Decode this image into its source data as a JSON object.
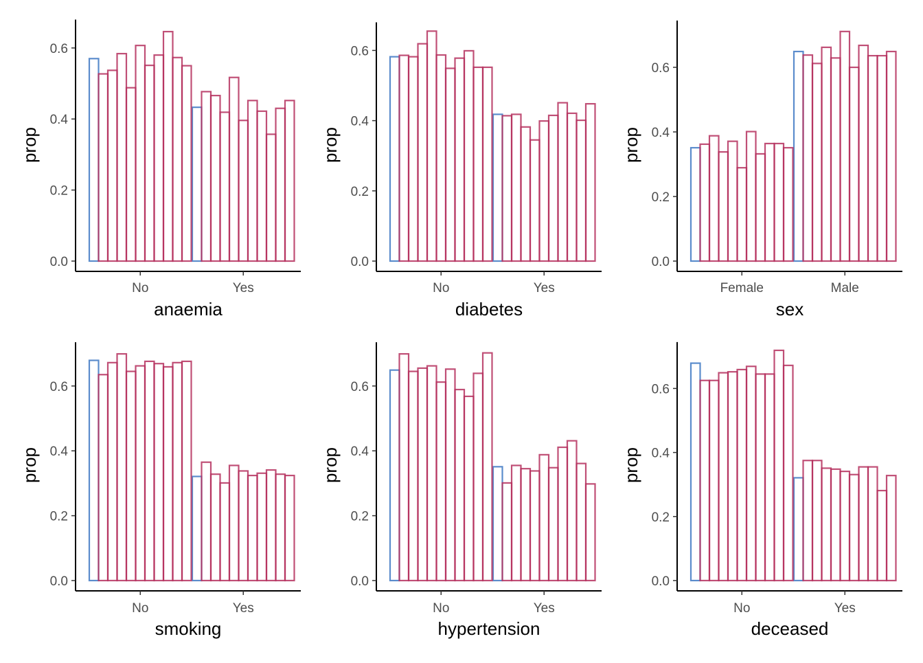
{
  "chart_data": [
    {
      "type": "bar",
      "xlabel": "anaemia",
      "ylabel": "prop",
      "categories": [
        "No",
        "Yes"
      ],
      "yticks": [
        0.0,
        0.2,
        0.4,
        0.6
      ],
      "ytick_labels": [
        "0.0",
        "0.2",
        "0.4",
        "0.6"
      ],
      "ylim": [
        0,
        0.68
      ],
      "series": [
        {
          "values": [
            0.57,
            0.433
          ]
        },
        {
          "values": [
            0.527,
            0.477
          ]
        },
        {
          "values": [
            0.537,
            0.466
          ]
        },
        {
          "values": [
            0.584,
            0.419
          ]
        },
        {
          "values": [
            0.488,
            0.517
          ]
        },
        {
          "values": [
            0.607,
            0.396
          ]
        },
        {
          "values": [
            0.551,
            0.452
          ]
        },
        {
          "values": [
            0.58,
            0.422
          ]
        },
        {
          "values": [
            0.646,
            0.357
          ]
        },
        {
          "values": [
            0.573,
            0.43
          ]
        },
        {
          "values": [
            0.55,
            0.452
          ]
        }
      ]
    },
    {
      "type": "bar",
      "xlabel": "diabetes",
      "ylabel": "prop",
      "categories": [
        "No",
        "Yes"
      ],
      "yticks": [
        0.0,
        0.2,
        0.4,
        0.6
      ],
      "ytick_labels": [
        "0.0",
        "0.2",
        "0.4",
        "0.6"
      ],
      "ylim": [
        0,
        0.68
      ],
      "series": [
        {
          "values": [
            0.582,
            0.418
          ]
        },
        {
          "values": [
            0.586,
            0.414
          ]
        },
        {
          "values": [
            0.582,
            0.418
          ]
        },
        {
          "values": [
            0.619,
            0.382
          ]
        },
        {
          "values": [
            0.655,
            0.345
          ]
        },
        {
          "values": [
            0.587,
            0.399
          ]
        },
        {
          "values": [
            0.549,
            0.415
          ]
        },
        {
          "values": [
            0.578,
            0.451
          ]
        },
        {
          "values": [
            0.599,
            0.421
          ]
        },
        {
          "values": [
            0.552,
            0.401
          ]
        },
        {
          "values": [
            0.552,
            0.448
          ]
        }
      ]
    },
    {
      "type": "bar",
      "xlabel": "sex",
      "ylabel": "prop",
      "categories": [
        "Female",
        "Male"
      ],
      "yticks": [
        0.0,
        0.2,
        0.4,
        0.6
      ],
      "ytick_labels": [
        "0.0",
        "0.2",
        "0.4",
        "0.6"
      ],
      "ylim": [
        0,
        0.745
      ],
      "series": [
        {
          "values": [
            0.351,
            0.649
          ]
        },
        {
          "values": [
            0.362,
            0.638
          ]
        },
        {
          "values": [
            0.388,
            0.612
          ]
        },
        {
          "values": [
            0.338,
            0.662
          ]
        },
        {
          "values": [
            0.371,
            0.629
          ]
        },
        {
          "values": [
            0.289,
            0.711
          ]
        },
        {
          "values": [
            0.401,
            0.6
          ]
        },
        {
          "values": [
            0.332,
            0.668
          ]
        },
        {
          "values": [
            0.364,
            0.636
          ]
        },
        {
          "values": [
            0.364,
            0.636
          ]
        },
        {
          "values": [
            0.351,
            0.649
          ]
        }
      ]
    },
    {
      "type": "bar",
      "xlabel": "smoking",
      "ylabel": "prop",
      "categories": [
        "No",
        "Yes"
      ],
      "yticks": [
        0.0,
        0.2,
        0.4,
        0.6
      ],
      "ytick_labels": [
        "0.0",
        "0.2",
        "0.4",
        "0.6"
      ],
      "ylim": [
        0,
        0.735
      ],
      "series": [
        {
          "values": [
            0.679,
            0.321
          ]
        },
        {
          "values": [
            0.635,
            0.365
          ]
        },
        {
          "values": [
            0.672,
            0.328
          ]
        },
        {
          "values": [
            0.699,
            0.301
          ]
        },
        {
          "values": [
            0.645,
            0.355
          ]
        },
        {
          "values": [
            0.662,
            0.338
          ]
        },
        {
          "values": [
            0.676,
            0.324
          ]
        },
        {
          "values": [
            0.669,
            0.331
          ]
        },
        {
          "values": [
            0.659,
            0.341
          ]
        },
        {
          "values": [
            0.672,
            0.328
          ]
        },
        {
          "values": [
            0.676,
            0.324
          ]
        }
      ]
    },
    {
      "type": "bar",
      "xlabel": "hypertension",
      "ylabel": "prop",
      "categories": [
        "No",
        "Yes"
      ],
      "yticks": [
        0.0,
        0.2,
        0.4,
        0.6
      ],
      "ytick_labels": [
        "0.0",
        "0.2",
        "0.4",
        "0.6"
      ],
      "ylim": [
        0,
        0.735
      ],
      "series": [
        {
          "values": [
            0.649,
            0.351
          ]
        },
        {
          "values": [
            0.699,
            0.301
          ]
        },
        {
          "values": [
            0.645,
            0.355
          ]
        },
        {
          "values": [
            0.655,
            0.345
          ]
        },
        {
          "values": [
            0.662,
            0.338
          ]
        },
        {
          "values": [
            0.612,
            0.388
          ]
        },
        {
          "values": [
            0.652,
            0.348
          ]
        },
        {
          "values": [
            0.589,
            0.411
          ]
        },
        {
          "values": [
            0.568,
            0.431
          ]
        },
        {
          "values": [
            0.639,
            0.361
          ]
        },
        {
          "values": [
            0.702,
            0.298
          ]
        }
      ]
    },
    {
      "type": "bar",
      "xlabel": "deceased",
      "ylabel": "prop",
      "categories": [
        "No",
        "Yes"
      ],
      "yticks": [
        0.0,
        0.2,
        0.4,
        0.6
      ],
      "ytick_labels": [
        "0.0",
        "0.2",
        "0.4",
        "0.6"
      ],
      "ylim": [
        0,
        0.745
      ],
      "series": [
        {
          "values": [
            0.679,
            0.321
          ]
        },
        {
          "values": [
            0.625,
            0.375
          ]
        },
        {
          "values": [
            0.625,
            0.375
          ]
        },
        {
          "values": [
            0.649,
            0.351
          ]
        },
        {
          "values": [
            0.652,
            0.348
          ]
        },
        {
          "values": [
            0.659,
            0.341
          ]
        },
        {
          "values": [
            0.669,
            0.331
          ]
        },
        {
          "values": [
            0.645,
            0.355
          ]
        },
        {
          "values": [
            0.645,
            0.355
          ]
        },
        {
          "values": [
            0.719,
            0.281
          ]
        },
        {
          "values": [
            0.672,
            0.328
          ]
        }
      ]
    }
  ],
  "colors": {
    "observed": "#5b8ccc",
    "replicate": "#b5305e",
    "axis": "#000000",
    "tick_text": "#4d4d4d"
  }
}
